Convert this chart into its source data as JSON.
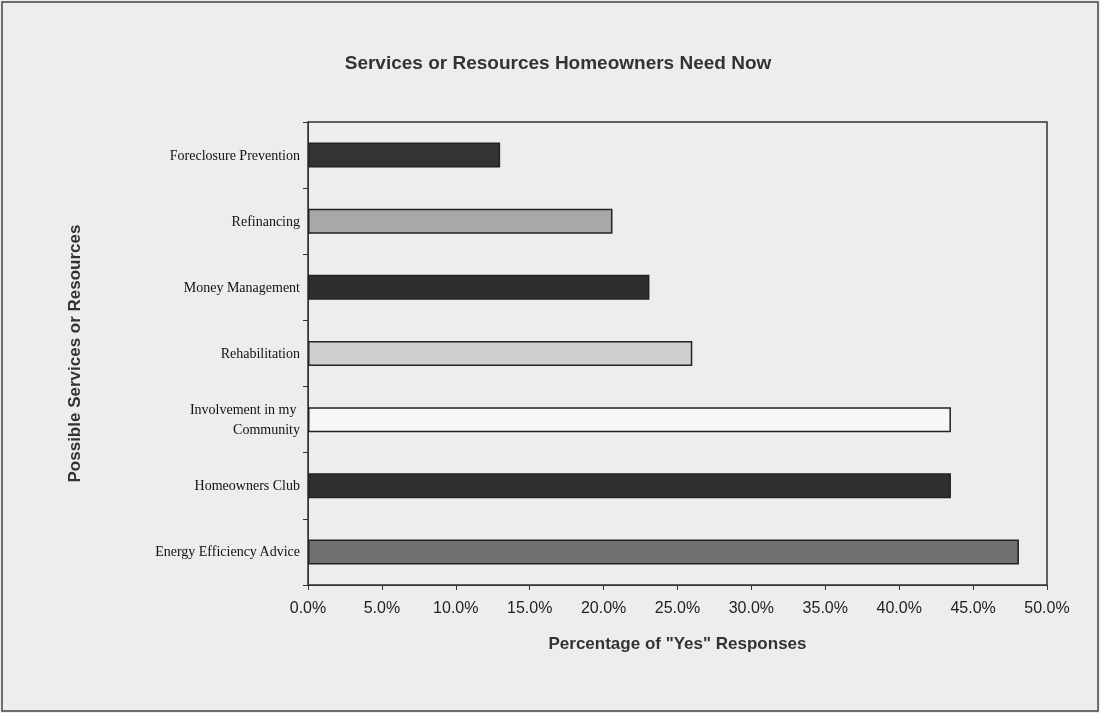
{
  "chart_data": {
    "type": "bar",
    "orientation": "horizontal",
    "title": "Services or Resources Homeowners Need Now",
    "xlabel": "Percentage of \"Yes\" Responses",
    "ylabel": "Possible Services or Resources",
    "categories": [
      "Foreclosure Prevention",
      "Refinancing",
      "Money Management",
      "Rehabilitation",
      "Involvement in my Community",
      "Homeowners Club",
      "Energy Efficiency Advice"
    ],
    "values": [
      13.0,
      20.6,
      23.1,
      26.0,
      43.5,
      43.5,
      48.1
    ],
    "colors": [
      "#333333",
      "#a8a8a8",
      "#2e2e2e",
      "#cfcfcf",
      "#f7f7f7",
      "#303030",
      "#707070"
    ],
    "xlim": [
      0,
      50
    ],
    "xticks": [
      {
        "value": 0,
        "label": "0.0%"
      },
      {
        "value": 5,
        "label": "5.0%"
      },
      {
        "value": 10,
        "label": "10.0%"
      },
      {
        "value": 15,
        "label": "15.0%"
      },
      {
        "value": 20,
        "label": "20.0%"
      },
      {
        "value": 25,
        "label": "25.0%"
      },
      {
        "value": 30,
        "label": "30.0%"
      },
      {
        "value": 35,
        "label": "35.0%"
      },
      {
        "value": 40,
        "label": "40.0%"
      },
      {
        "value": 45,
        "label": "45.0%"
      },
      {
        "value": 50,
        "label": "50.0%"
      }
    ],
    "grid": false
  }
}
